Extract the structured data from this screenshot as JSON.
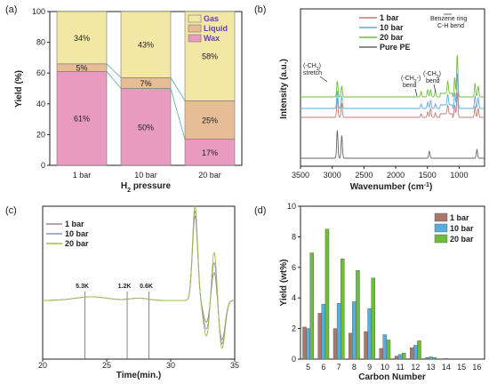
{
  "chart_data": [
    {
      "panel": "(a)",
      "type": "bar",
      "stacked": true,
      "categories": [
        "1 bar",
        "10 bar",
        "20 bar"
      ],
      "series": [
        {
          "name": "Wax",
          "values": [
            61,
            50,
            17
          ],
          "labels": [
            "61%",
            "50%",
            "17%"
          ],
          "color": "#e89bbf"
        },
        {
          "name": "Liquid",
          "values": [
            5,
            7,
            25
          ],
          "labels": [
            "5%",
            "7%",
            "25%"
          ],
          "color": "#e6bd96"
        },
        {
          "name": "Gas",
          "values": [
            34,
            43,
            58
          ],
          "labels": [
            "34%",
            "43%",
            "58%"
          ],
          "color": "#f3e7a6"
        }
      ],
      "ylabel": "Yield (%)",
      "xlabel": "H",
      "xlabel_sub": "2",
      "xlabel_rest": " pressure",
      "ylim": [
        0,
        100
      ],
      "yticks": [
        0,
        20,
        40,
        60,
        80,
        100
      ],
      "legend_position": "top-right"
    },
    {
      "panel": "(b)",
      "type": "line",
      "series": [
        {
          "name": "1 bar",
          "color": "#c47b74"
        },
        {
          "name": "10 bar",
          "color": "#5aaee0"
        },
        {
          "name": "20 bar",
          "color": "#6fbb3c"
        },
        {
          "name": "Pure PE",
          "color": "#666666"
        }
      ],
      "xlabel": "Wavenumber (cm",
      "xlabel_sup": "-1",
      "xlabel_end": ")",
      "ylabel": "Intensity (a.u.)",
      "xlim": [
        3500,
        600
      ],
      "xticks": [
        3500,
        3000,
        2500,
        2000,
        1500,
        1000
      ],
      "annotations": [
        "(-CH",
        "3",
        ")",
        "stretch",
        "(-CH",
        "2",
        "-)",
        "bend",
        "(-CH",
        "3",
        ")",
        "bend",
        "Benzene ring",
        "C-H bend"
      ]
    },
    {
      "panel": "(c)",
      "type": "line",
      "series": [
        {
          "name": "1 bar",
          "color": "#a08a84"
        },
        {
          "name": "10 bar",
          "color": "#8a9ab0"
        },
        {
          "name": "20 bar",
          "color": "#9dbb55"
        }
      ],
      "xlabel": "Time(min.)",
      "xlim": [
        20,
        35
      ],
      "xticks": [
        20,
        25,
        30,
        35
      ],
      "markers": [
        {
          "x": 23.3,
          "label": "5.3K"
        },
        {
          "x": 26.6,
          "label": "1.2K"
        },
        {
          "x": 28.3,
          "label": "0.6K"
        }
      ]
    },
    {
      "panel": "(d)",
      "type": "bar",
      "categories": [
        "5",
        "6",
        "7",
        "8",
        "9",
        "10",
        "11",
        "12",
        "13",
        "14",
        "15",
        "16"
      ],
      "series": [
        {
          "name": "1 bar",
          "color": "#a8786b",
          "values": [
            2.1,
            3.0,
            2.0,
            1.7,
            1.8,
            0.7,
            0.2,
            0.75,
            0.1,
            0.0,
            0.0,
            0.0
          ]
        },
        {
          "name": "10 bar",
          "color": "#56aee0",
          "values": [
            2.0,
            3.6,
            3.65,
            3.75,
            3.3,
            1.6,
            0.3,
            0.9,
            0.15,
            0.05,
            0.0,
            0.0
          ]
        },
        {
          "name": "20 bar",
          "color": "#6bbd3a",
          "values": [
            6.95,
            8.5,
            6.55,
            5.8,
            5.3,
            1.25,
            0.4,
            1.2,
            0.1,
            0.0,
            0.0,
            0.0
          ]
        }
      ],
      "xlabel": "Carbon Number",
      "ylabel": "Yield (wt%)",
      "ylim": [
        0,
        10
      ],
      "yticks": [
        0,
        2,
        4,
        6,
        8,
        10
      ],
      "legend_position": "top-right"
    }
  ]
}
